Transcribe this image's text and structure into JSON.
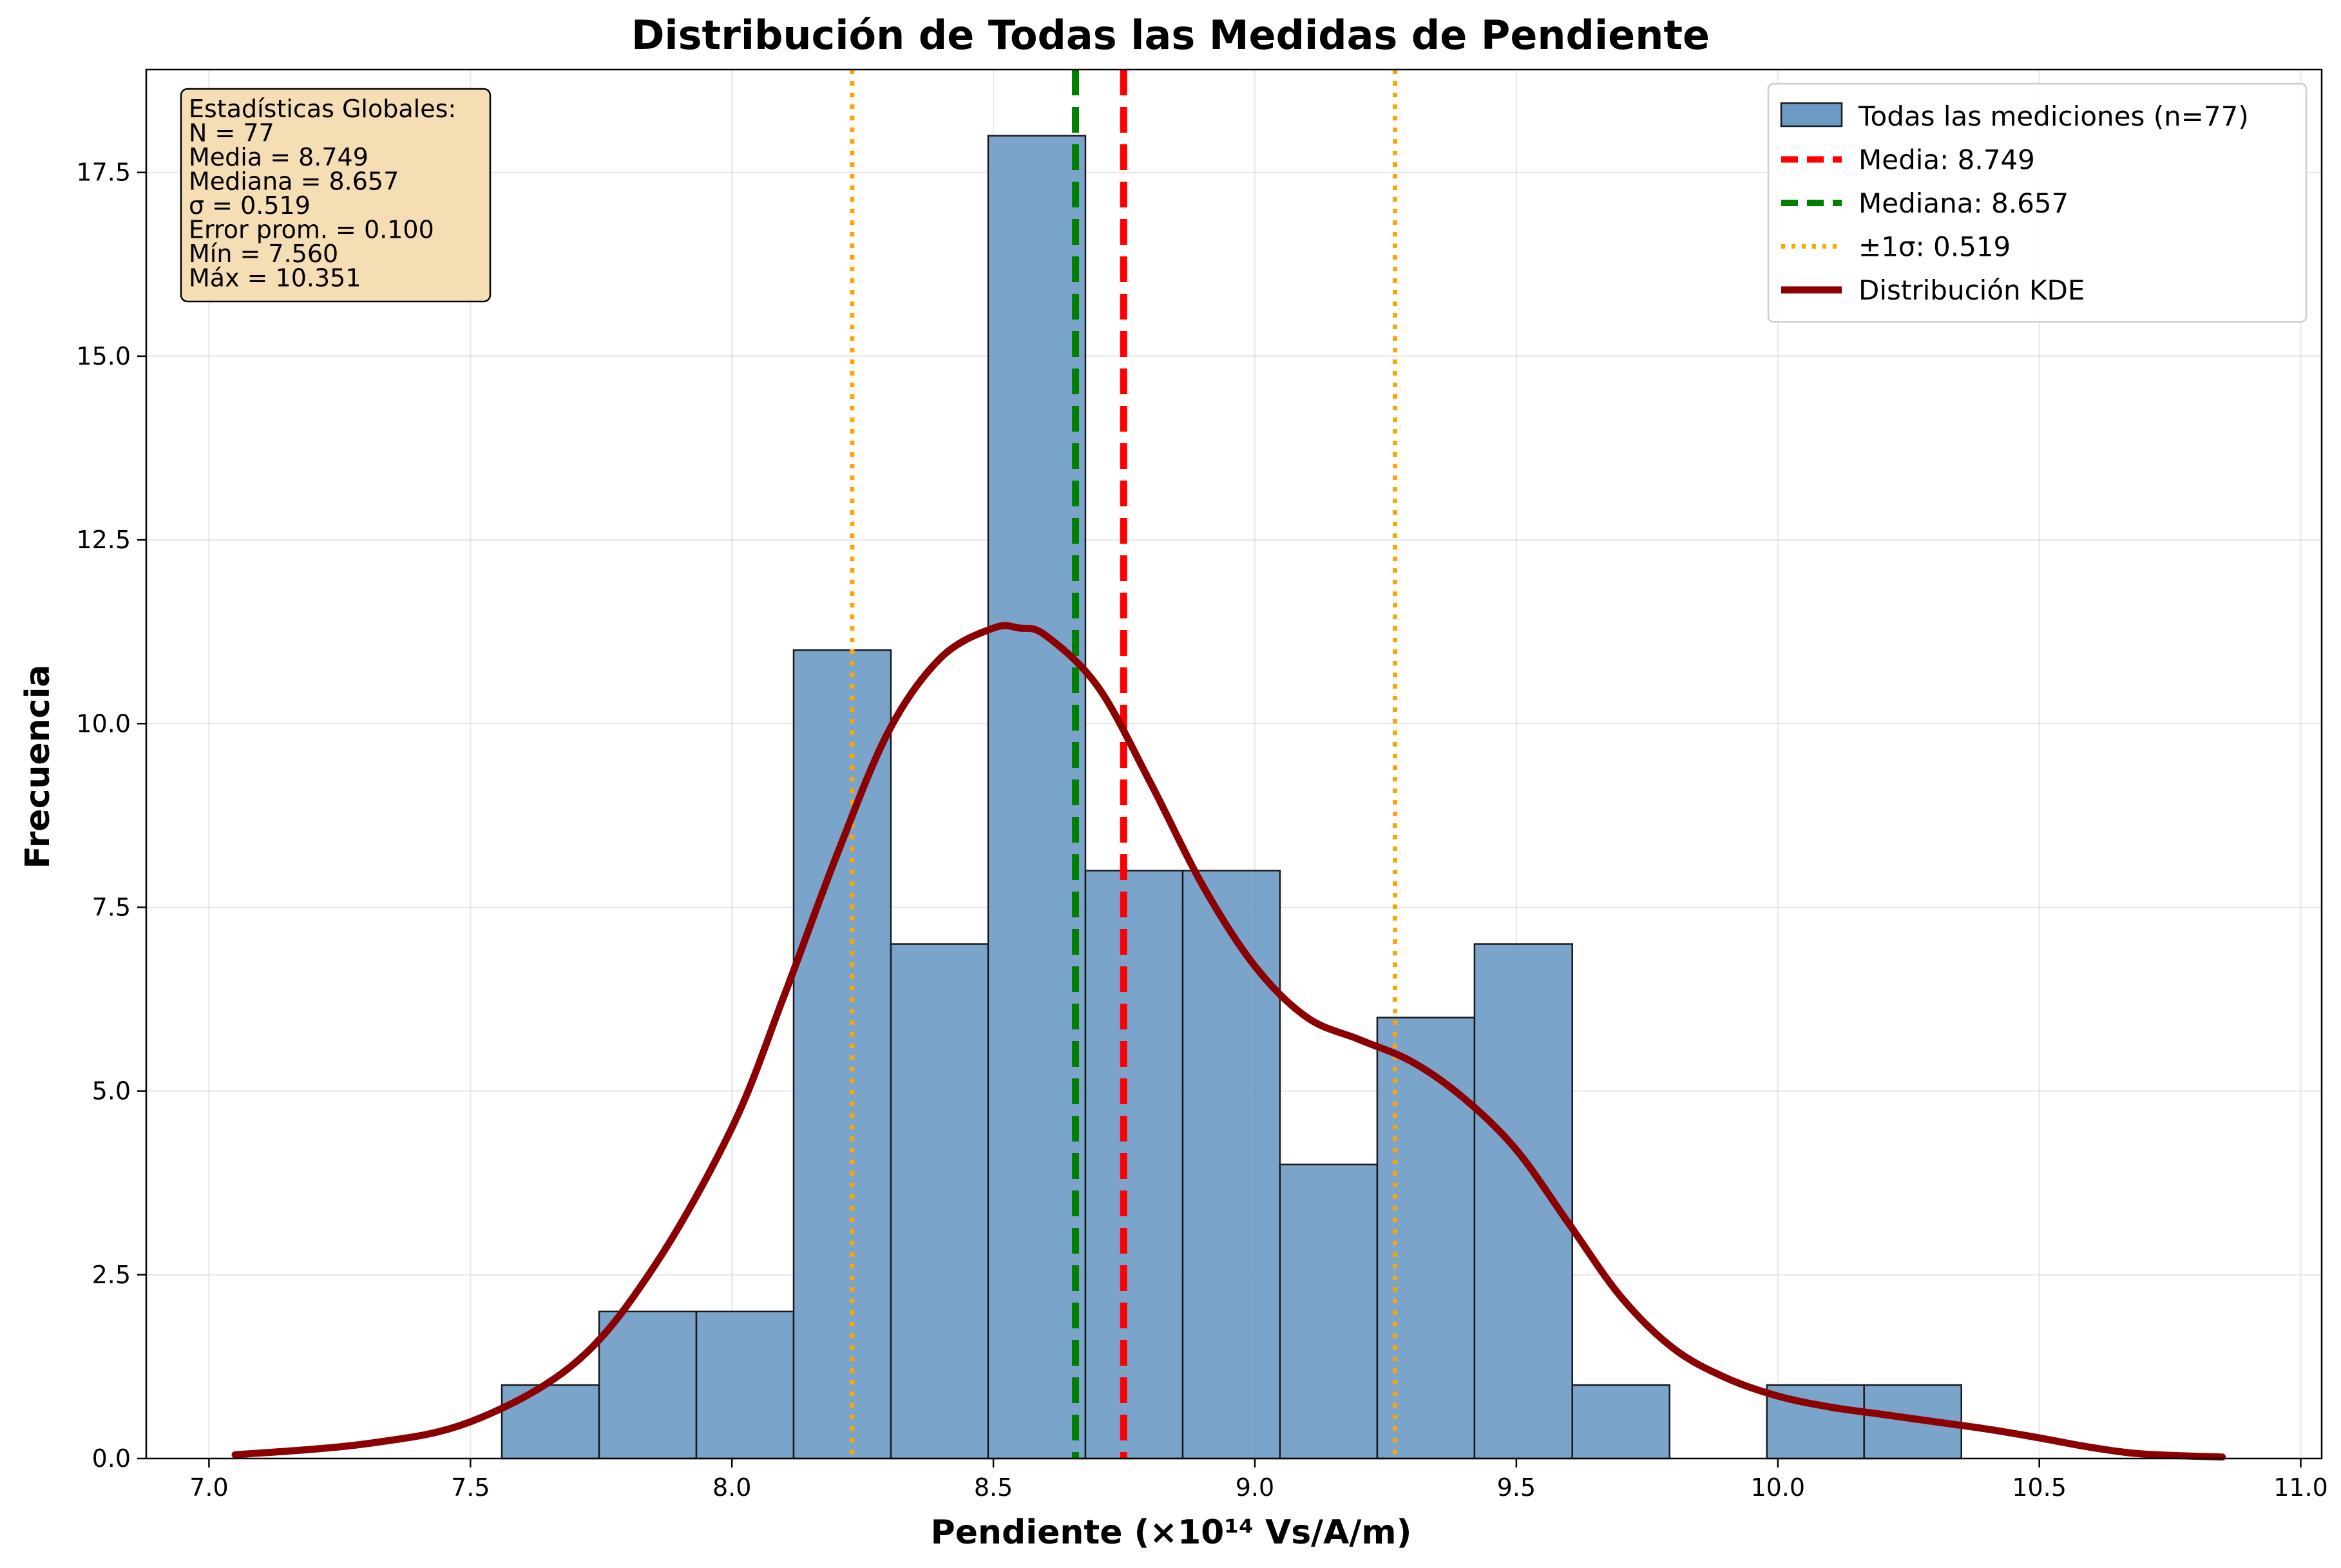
{
  "chart_data": {
    "type": "bar",
    "title": "Distribución de Todas las Medidas de Pendiente",
    "xlabel": "Pendiente (×10¹⁴ Vs/A/m)",
    "ylabel": "Frecuencia",
    "xlim": [
      6.88,
      11.04
    ],
    "ylim": [
      0,
      18.9
    ],
    "x_ticks": [
      "7.0",
      "7.5",
      "8.0",
      "8.5",
      "9.0",
      "9.5",
      "10.0",
      "10.5",
      "11.0"
    ],
    "x_tick_values": [
      7.0,
      7.5,
      8.0,
      8.5,
      9.0,
      9.5,
      10.0,
      10.5,
      11.0
    ],
    "y_ticks": [
      "0.0",
      "2.5",
      "5.0",
      "7.5",
      "10.0",
      "12.5",
      "15.0",
      "17.5"
    ],
    "y_tick_values": [
      0,
      2.5,
      5.0,
      7.5,
      10.0,
      12.5,
      15.0,
      17.5
    ],
    "grid": true,
    "histogram": {
      "name": "Todas las mediciones (n=77)",
      "color": "#6b9ac4",
      "bin_edges": [
        7.56,
        7.746,
        7.932,
        8.118,
        8.304,
        8.49,
        8.676,
        8.862,
        9.048,
        9.234,
        9.42,
        9.607,
        9.793,
        9.979,
        10.165,
        10.351
      ],
      "counts": [
        1,
        2,
        2,
        11,
        7,
        18,
        8,
        8,
        4,
        6,
        7,
        1,
        0,
        1,
        1
      ]
    },
    "vlines": [
      {
        "name": "Media: 8.749",
        "x": 8.749,
        "color": "#ff0000",
        "style": "dashed"
      },
      {
        "name": "Mediana: 8.657",
        "x": 8.657,
        "color": "#008000",
        "style": "dashed"
      },
      {
        "name": "±1σ: 0.519",
        "x": 8.23,
        "color": "#ffa500",
        "style": "dotted"
      },
      {
        "name": "",
        "x": 9.268,
        "color": "#ffa500",
        "style": "dotted"
      }
    ],
    "kde": {
      "name": "Distribución KDE",
      "color": "#8b0000",
      "x": [
        7.05,
        7.3,
        7.5,
        7.7,
        7.85,
        8.0,
        8.1,
        8.2,
        8.3,
        8.4,
        8.5,
        8.55,
        8.6,
        8.7,
        8.8,
        8.9,
        9.0,
        9.1,
        9.2,
        9.3,
        9.4,
        9.5,
        9.6,
        9.7,
        9.8,
        9.9,
        10.0,
        10.1,
        10.2,
        10.3,
        10.4,
        10.5,
        10.6,
        10.7,
        10.85
      ],
      "y": [
        0.05,
        0.2,
        0.5,
        1.3,
        2.6,
        4.5,
        6.3,
        8.2,
        9.9,
        10.9,
        11.3,
        11.3,
        11.2,
        10.5,
        9.2,
        7.8,
        6.7,
        6.0,
        5.7,
        5.4,
        4.9,
        4.2,
        3.2,
        2.2,
        1.5,
        1.1,
        0.85,
        0.7,
        0.6,
        0.5,
        0.4,
        0.28,
        0.15,
        0.06,
        0.02
      ]
    },
    "legend": {
      "placement": "top-right",
      "entries": [
        "Todas las mediciones (n=77)",
        "Media: 8.749",
        "Mediana: 8.657",
        "±1σ: 0.519",
        "Distribución KDE"
      ]
    },
    "stats_box": {
      "placement": "top-left",
      "background": "#f5deb3",
      "lines": [
        "Estadísticas Globales:",
        "N = 77",
        "Media = 8.749",
        "Mediana = 8.657",
        "σ = 0.519",
        "Error prom. = 0.100",
        "Mín = 7.560",
        "Máx = 10.351"
      ]
    }
  }
}
